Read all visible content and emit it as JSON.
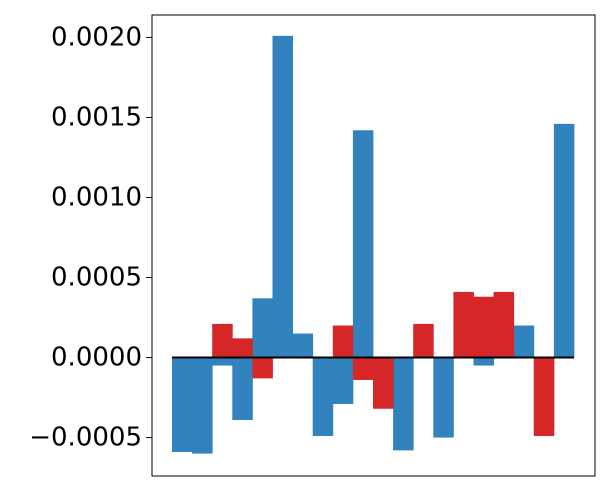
{
  "chart_data": {
    "type": "bar",
    "title": "",
    "xlabel": "",
    "ylabel": "",
    "ylim": [
      -0.00074,
      0.00214
    ],
    "yticks": [
      -0.0005,
      0.0,
      0.0005,
      0.001,
      0.0015,
      0.002
    ],
    "ytick_labels": [
      "−0.0005",
      "0.0000",
      "0.0005",
      "0.0010",
      "0.0015",
      "0.0020"
    ],
    "x_ticks_shown": false,
    "grid": false,
    "legend": "none",
    "baseline": 0,
    "colors": {
      "blue": "#3182bd",
      "red": "#d62728",
      "baseline": "#000000"
    },
    "num_bins": 20,
    "series": [
      {
        "color": "blue",
        "values": [
          -0.00059,
          -0.0006,
          -5e-05,
          -0.00039,
          0.00037,
          0.00201,
          0.00015,
          -0.00049,
          -0.00029,
          0.00142,
          -0.00019,
          -0.00058,
          0.0,
          -0.0005,
          0.0,
          -5e-05,
          0.00022,
          0.0002,
          -0.00045,
          0.00146
        ]
      },
      {
        "color": "red",
        "values": [
          0.0,
          0.0,
          0.00021,
          0.00012,
          -0.00013,
          0.0,
          0.0,
          0.0,
          0.0002,
          -0.00014,
          -0.00032,
          0.0,
          0.00021,
          0.0,
          0.00041,
          0.00038,
          0.00041,
          0.0,
          -0.00049,
          0.0
        ]
      }
    ]
  }
}
